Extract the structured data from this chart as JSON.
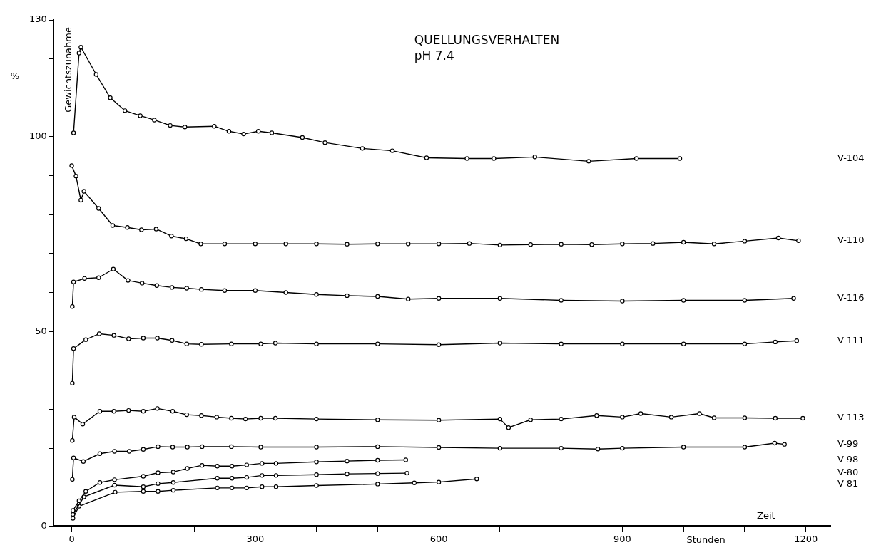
{
  "chart_data": {
    "type": "line",
    "title": "QUELLUNGSVERHALTEN",
    "subtitle": "pH 7.4",
    "xlabel": "Zeit",
    "ylabel": "Gewichtszunahme",
    "annotations": [
      "%",
      "Stunden"
    ],
    "xlim": [
      -30,
      1240
    ],
    "xticks": [
      0,
      {
        "value": 100,
        "label": null
      },
      {
        "value": 200,
        "label": null
      },
      300,
      {
        "value": 400,
        "label": null
      },
      {
        "value": 500,
        "label": null
      },
      600,
      {
        "value": 700,
        "label": null
      },
      {
        "value": 800,
        "label": null
      },
      900,
      {
        "value": 1000,
        "label": null
      },
      {
        "value": 1100,
        "label": null
      },
      1200
    ],
    "ylim": [
      0,
      130
    ],
    "yticks": [
      0,
      {
        "value": 10,
        "label": null
      },
      {
        "value": 20,
        "label": null
      },
      {
        "value": 30,
        "label": null
      },
      {
        "value": 40,
        "label": null
      },
      50,
      {
        "value": 60,
        "label": null
      },
      {
        "value": 70,
        "label": null
      },
      {
        "value": 80,
        "label": null
      },
      {
        "value": 90,
        "label": null
      },
      100,
      {
        "value": 110,
        "label": null
      },
      {
        "value": 120,
        "label": null
      },
      130
    ],
    "grid": false,
    "legend": false,
    "marker": "circle",
    "line_style": "solid",
    "series": [
      {
        "name": "V-104",
        "color": "#000000",
        "x": [
          3,
          12,
          15,
          40,
          63,
          87,
          112,
          135,
          161,
          185,
          233,
          257,
          281,
          305,
          327,
          377,
          414,
          475,
          524,
          580,
          646,
          690,
          757,
          845,
          923,
          994
        ],
        "values": [
          101,
          121.5,
          123,
          116,
          110,
          106.7,
          105.4,
          104.3,
          102.9,
          102.5,
          102.7,
          101.4,
          100.7,
          101.4,
          101,
          99.8,
          98.5,
          97,
          96.4,
          94.6,
          94.4,
          94.4,
          94.8,
          93.7,
          94.4,
          94.4
        ]
      },
      {
        "name": "V-110",
        "color": "#000000",
        "x": [
          0,
          7,
          15,
          20,
          44,
          67,
          91,
          114,
          138,
          163,
          187,
          211,
          250,
          300,
          350,
          400,
          450,
          500,
          550,
          600,
          650,
          700,
          750,
          800,
          850,
          900,
          950,
          1000,
          1050,
          1100,
          1155,
          1188
        ],
        "values": [
          92.6,
          89.9,
          83.7,
          86,
          81.6,
          77.2,
          76.7,
          76.1,
          76.3,
          74.5,
          73.8,
          72.5,
          72.5,
          72.5,
          72.5,
          72.5,
          72.4,
          72.5,
          72.5,
          72.5,
          72.6,
          72.2,
          72.3,
          72.4,
          72.3,
          72.5,
          72.6,
          72.9,
          72.5,
          73.2,
          74,
          73.3
        ]
      },
      {
        "name": "V-116",
        "color": "#000000",
        "x": [
          1,
          3,
          21,
          44,
          68,
          92,
          115,
          139,
          164,
          188,
          212,
          250,
          300,
          350,
          400,
          450,
          500,
          550,
          600,
          700,
          800,
          900,
          1000,
          1100,
          1180
        ],
        "values": [
          56.4,
          62.7,
          63.6,
          63.8,
          66,
          63.1,
          62.4,
          61.8,
          61.3,
          61.1,
          60.8,
          60.5,
          60.5,
          60,
          59.5,
          59.2,
          59,
          58.3,
          58.5,
          58.5,
          58,
          57.8,
          58,
          58,
          58.5
        ]
      },
      {
        "name": "V-111",
        "color": "#000000",
        "x": [
          1,
          3,
          23,
          45,
          69,
          93,
          117,
          140,
          164,
          188,
          212,
          261,
          309,
          333,
          400,
          500,
          600,
          700,
          800,
          900,
          1000,
          1100,
          1150,
          1185
        ],
        "values": [
          36.7,
          45.6,
          47.9,
          49.4,
          49,
          48.1,
          48.3,
          48.3,
          47.7,
          46.8,
          46.7,
          46.8,
          46.8,
          47,
          46.8,
          46.8,
          46.6,
          47,
          46.8,
          46.8,
          46.8,
          46.8,
          47.3,
          47.6
        ]
      },
      {
        "name": "V-113",
        "color": "#000000",
        "x": [
          1,
          4,
          18,
          46,
          69,
          93,
          117,
          140,
          165,
          188,
          212,
          237,
          261,
          284,
          309,
          333,
          400,
          500,
          600,
          700,
          714,
          750,
          800,
          858,
          900,
          930,
          980,
          1026,
          1050,
          1100,
          1150,
          1195
        ],
        "values": [
          22,
          28,
          26.2,
          29.5,
          29.5,
          29.7,
          29.5,
          30.2,
          29.5,
          28.6,
          28.4,
          28,
          27.7,
          27.5,
          27.7,
          27.7,
          27.5,
          27.3,
          27.2,
          27.5,
          25.3,
          27.3,
          27.5,
          28.4,
          28,
          28.9,
          28,
          28.9,
          27.8,
          27.8,
          27.7,
          27.7
        ]
      },
      {
        "name": "V-99",
        "color": "#000000",
        "x": [
          1,
          3,
          19,
          46,
          70,
          94,
          117,
          141,
          165,
          189,
          213,
          261,
          309,
          400,
          500,
          600,
          700,
          800,
          860,
          900,
          1000,
          1100,
          1149,
          1165
        ],
        "values": [
          12,
          17.5,
          16.6,
          18.6,
          19.2,
          19.2,
          19.7,
          20.4,
          20.3,
          20.3,
          20.4,
          20.4,
          20.3,
          20.3,
          20.4,
          20.2,
          20,
          20,
          19.8,
          20,
          20.3,
          20.3,
          21.3,
          21
        ]
      },
      {
        "name": "V-98",
        "color": "#000000",
        "x": [
          2,
          12,
          23,
          46,
          70,
          117,
          141,
          166,
          189,
          213,
          238,
          262,
          286,
          311,
          334,
          400,
          450,
          500,
          546
        ],
        "values": [
          4,
          6.5,
          8.9,
          11.2,
          11.9,
          12.8,
          13.7,
          13.9,
          14.8,
          15.6,
          15.4,
          15.4,
          15.7,
          16.1,
          16.1,
          16.5,
          16.7,
          16.9,
          17
        ]
      },
      {
        "name": "V-80",
        "color": "#000000",
        "x": [
          2,
          20,
          70,
          117,
          141,
          166,
          238,
          262,
          286,
          311,
          334,
          400,
          450,
          500,
          548
        ],
        "values": [
          3,
          7.5,
          10.5,
          10.1,
          10.9,
          11.2,
          12.3,
          12.3,
          12.5,
          13,
          13,
          13.2,
          13.4,
          13.5,
          13.6
        ]
      },
      {
        "name": "V-81",
        "color": "#000000",
        "x": [
          2,
          12,
          71,
          117,
          141,
          166,
          238,
          262,
          286,
          311,
          334,
          400,
          500,
          560,
          600,
          662
        ],
        "values": [
          2,
          5.1,
          8.7,
          8.9,
          8.9,
          9.2,
          9.8,
          9.8,
          9.8,
          10.1,
          10.1,
          10.4,
          10.8,
          11.1,
          11.3,
          12.1
        ]
      }
    ]
  }
}
